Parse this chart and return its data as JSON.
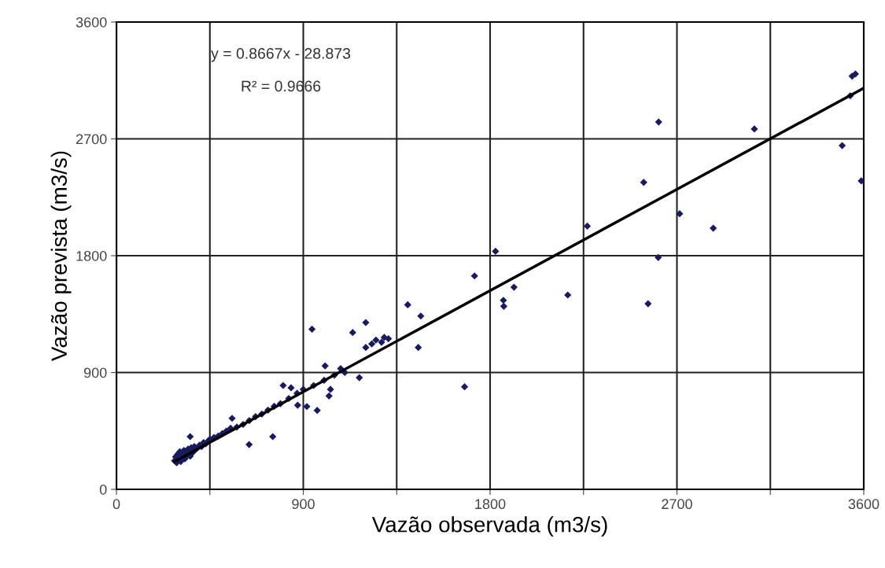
{
  "chart_data": {
    "type": "scatter",
    "xlabel": "Vazão observada (m3/s)",
    "ylabel": "Vazão prevista (m3/s)",
    "xlim": [
      0,
      3600
    ],
    "ylim": [
      0,
      3600
    ],
    "xticks": [
      0,
      {
        "value": 450,
        "label": null
      },
      900,
      {
        "value": 1350,
        "label": null
      },
      1800,
      {
        "value": 2250,
        "label": null
      },
      2700,
      {
        "value": 3150,
        "label": null
      },
      3600
    ],
    "yticks": [
      0,
      900,
      1800,
      2700,
      3600
    ],
    "grid": true,
    "marker": "diamond",
    "annotations": [
      "y = 0.8667x - 28.873",
      "R² = 0.9666"
    ],
    "series": [
      {
        "color": "#1a1a5e",
        "x": [
          280,
          285,
          290,
          295,
          300,
          305,
          310,
          315,
          325,
          330,
          335,
          340,
          345,
          350,
          355,
          360,
          365,
          375,
          380,
          390,
          400,
          410,
          420,
          430,
          440,
          450,
          470,
          490,
          510,
          530,
          550,
          580,
          610,
          640,
          670,
          700,
          730,
          760,
          790,
          830,
          870,
          900,
          950,
          1000,
          1050,
          1080,
          1100,
          1230,
          1250,
          1290,
          1310,
          942,
          1138,
          1201,
          1403,
          1466,
          1454,
          1201,
          1277,
          1170,
          1005,
          1031,
          1024,
          967,
          917,
          873,
          803,
          841,
          753,
          639,
          557,
          355,
          2268,
          2875,
          1826,
          2610,
          1725,
          1915,
          1864,
          1866,
          2174,
          2561,
          1677,
          2612,
          3073,
          3544,
          3560,
          3496,
          3588,
          2540,
          2713,
          3535
        ],
        "values": [
          220,
          250,
          205,
          270,
          230,
          290,
          215,
          260,
          300,
          235,
          280,
          265,
          310,
          290,
          255,
          320,
          280,
          330,
          305,
          320,
          340,
          330,
          360,
          350,
          370,
          385,
          400,
          410,
          430,
          450,
          470,
          480,
          500,
          530,
          560,
          580,
          610,
          640,
          660,
          700,
          740,
          770,
          800,
          840,
          880,
          930,
          900,
          1120,
          1150,
          1170,
          1160,
          1234,
          1208,
          1285,
          1422,
          1335,
          1093,
          1093,
          1133,
          860,
          951,
          770,
          719,
          608,
          638,
          648,
          800,
          782,
          406,
          345,
          547,
          406,
          2028,
          2012,
          1834,
          1786,
          1644,
          1557,
          1456,
          1410,
          1497,
          1430,
          790,
          2830,
          2776,
          3183,
          3200,
          2648,
          2376,
          2365,
          2123,
          3032
        ]
      },
      {
        "type": "line",
        "color": "#000000",
        "marker": "none",
        "x": [
          280,
          3600
        ],
        "values": [
          214,
          3091
        ]
      }
    ]
  }
}
